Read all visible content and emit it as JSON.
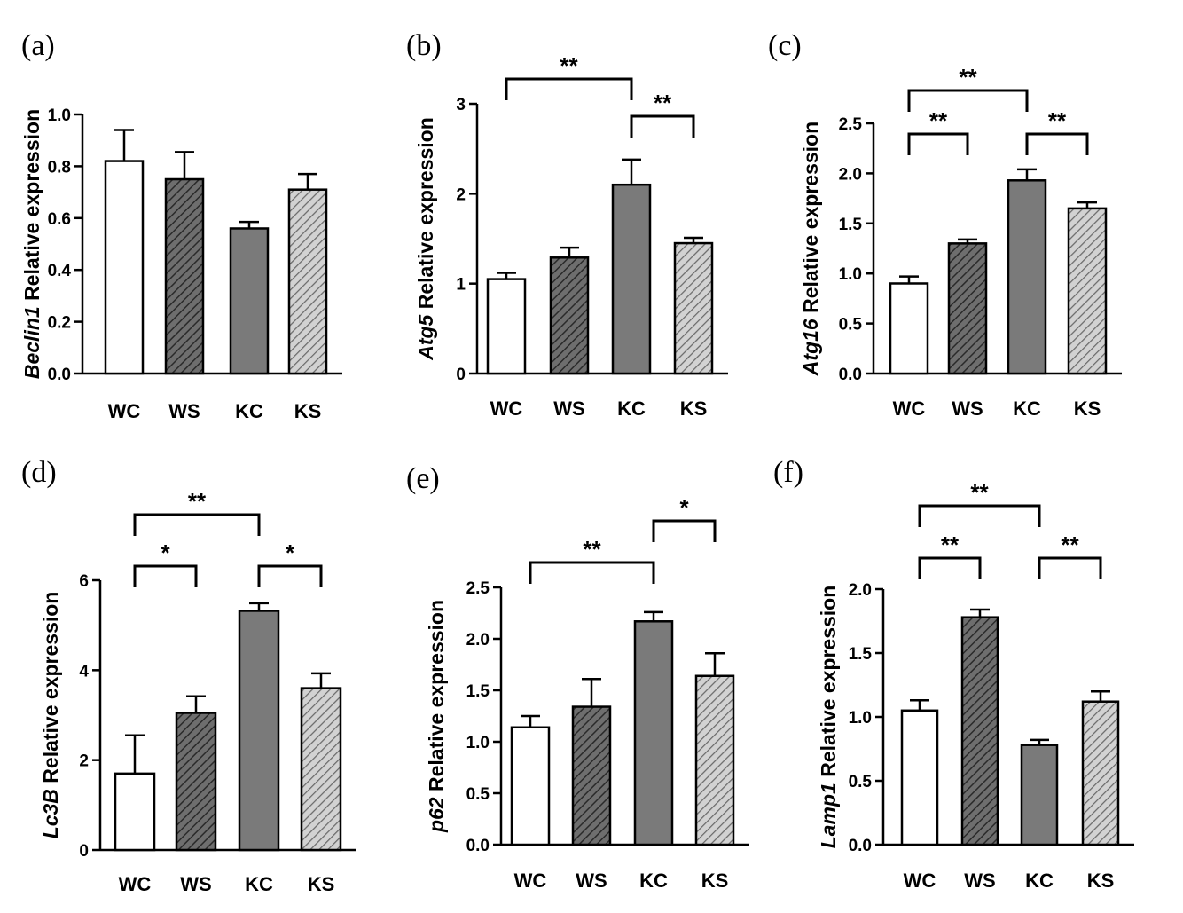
{
  "chart_data": [
    {
      "panel": "(a)",
      "type": "bar",
      "gene": "Beclin1",
      "ylabel_suffix": " Relative expression",
      "categories": [
        "WC",
        "WS",
        "KC",
        "KS"
      ],
      "values": [
        0.82,
        0.75,
        0.56,
        0.71
      ],
      "errors": [
        0.12,
        0.105,
        0.025,
        0.06
      ],
      "ylim": [
        0,
        1.0
      ],
      "yticks": [
        0.0,
        0.2,
        0.4,
        0.6,
        0.8,
        1.0
      ],
      "ytick_labels": [
        "0.0",
        "0.2",
        "0.4",
        "0.6",
        "0.8",
        "1.0"
      ],
      "significance": []
    },
    {
      "panel": "(b)",
      "type": "bar",
      "gene": "Atg5",
      "ylabel_suffix": " Relative expression",
      "categories": [
        "WC",
        "WS",
        "KC",
        "KS"
      ],
      "values": [
        1.05,
        1.29,
        2.1,
        1.45
      ],
      "errors": [
        0.07,
        0.11,
        0.28,
        0.06
      ],
      "ylim": [
        0,
        3
      ],
      "yticks": [
        0,
        1,
        2,
        3
      ],
      "ytick_labels": [
        "0",
        "1",
        "2",
        "3"
      ],
      "significance": [
        {
          "from": "WC",
          "to": "KC",
          "label": "**"
        },
        {
          "from": "KC",
          "to": "KS",
          "label": "**"
        }
      ]
    },
    {
      "panel": "(c)",
      "type": "bar",
      "gene": "Atg16",
      "ylabel_suffix": " Relative expression",
      "categories": [
        "WC",
        "WS",
        "KC",
        "KS"
      ],
      "values": [
        0.9,
        1.3,
        1.93,
        1.65
      ],
      "errors": [
        0.07,
        0.04,
        0.11,
        0.06
      ],
      "ylim": [
        0,
        2.5
      ],
      "yticks": [
        0.0,
        0.5,
        1.0,
        1.5,
        2.0,
        2.5
      ],
      "ytick_labels": [
        "0.0",
        "0.5",
        "1.0",
        "1.5",
        "2.0",
        "2.5"
      ],
      "significance": [
        {
          "from": "WC",
          "to": "KC",
          "label": "**"
        },
        {
          "from": "WC",
          "to": "WS",
          "label": "**"
        },
        {
          "from": "KC",
          "to": "KS",
          "label": "**"
        }
      ]
    },
    {
      "panel": "(d)",
      "type": "bar",
      "gene": "Lc3B",
      "ylabel_suffix": " Relative expression",
      "categories": [
        "WC",
        "WS",
        "KC",
        "KS"
      ],
      "values": [
        1.7,
        3.05,
        5.32,
        3.6
      ],
      "errors": [
        0.85,
        0.37,
        0.17,
        0.33
      ],
      "ylim": [
        0,
        6
      ],
      "yticks": [
        0,
        2,
        4,
        6
      ],
      "ytick_labels": [
        "0",
        "2",
        "4",
        "6"
      ],
      "significance": [
        {
          "from": "WC",
          "to": "KC",
          "label": "**"
        },
        {
          "from": "WC",
          "to": "WS",
          "label": "*"
        },
        {
          "from": "KC",
          "to": "KS",
          "label": "*"
        }
      ]
    },
    {
      "panel": "(e)",
      "type": "bar",
      "gene": "p62",
      "ylabel_suffix": " Relative expression",
      "categories": [
        "WC",
        "WS",
        "KC",
        "KS"
      ],
      "values": [
        1.14,
        1.34,
        2.17,
        1.64
      ],
      "errors": [
        0.11,
        0.27,
        0.09,
        0.22
      ],
      "ylim": [
        0,
        2.5
      ],
      "yticks": [
        0.0,
        0.5,
        1.0,
        1.5,
        2.0,
        2.5
      ],
      "ytick_labels": [
        "0.0",
        "0.5",
        "1.0",
        "1.5",
        "2.0",
        "2.5"
      ],
      "significance": [
        {
          "from": "WC",
          "to": "KC",
          "label": "**"
        },
        {
          "from": "KC",
          "to": "KS",
          "label": "*"
        }
      ]
    },
    {
      "panel": "(f)",
      "type": "bar",
      "gene": "Lamp1",
      "ylabel_suffix": " Relative expression",
      "categories": [
        "WC",
        "WS",
        "KC",
        "KS"
      ],
      "values": [
        1.05,
        1.78,
        0.78,
        1.12
      ],
      "errors": [
        0.08,
        0.06,
        0.04,
        0.08
      ],
      "ylim": [
        0,
        2.0
      ],
      "yticks": [
        0.0,
        0.5,
        1.0,
        1.5,
        2.0
      ],
      "ytick_labels": [
        "0.0",
        "0.5",
        "1.0",
        "1.5",
        "2.0"
      ],
      "significance": [
        {
          "from": "WC",
          "to": "KC",
          "label": "**"
        },
        {
          "from": "WC",
          "to": "WS",
          "label": "**"
        },
        {
          "from": "KC",
          "to": "KS",
          "label": "**"
        }
      ]
    }
  ],
  "bar_styles": {
    "WC": {
      "fill": "#ffffff",
      "hatch": "none"
    },
    "WS": {
      "fill": "#6e6e6e",
      "hatch": "dark-diagonal"
    },
    "KC": {
      "fill": "#7a7a7a",
      "hatch": "none"
    },
    "KS": {
      "fill": "#cfcfcf",
      "hatch": "light-diagonal"
    }
  },
  "colors": {
    "stroke": "#000000",
    "background": "#ffffff"
  }
}
